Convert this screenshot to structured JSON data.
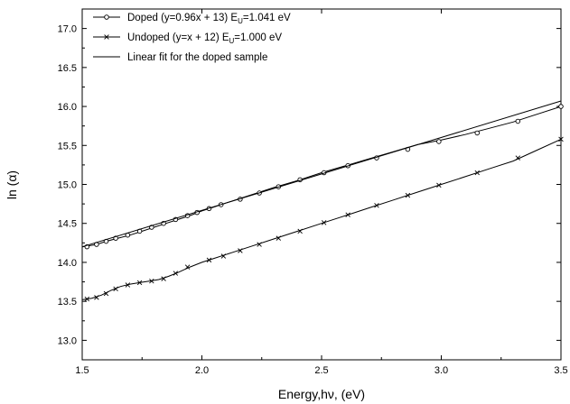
{
  "chart_data": {
    "type": "line",
    "xlabel": "Energy,hν, (eV)",
    "ylabel": "ln (α)",
    "xlim": [
      1.5,
      3.5
    ],
    "ylim": [
      12.75,
      17.25
    ],
    "xticks": [
      "1.5",
      "2.0",
      "2.5",
      "3.0",
      "3.5"
    ],
    "yticks": [
      "13.0",
      "13.5",
      "14.0",
      "14.5",
      "15.0",
      "15.5",
      "16.0",
      "16.5",
      "17.0"
    ],
    "xtick_values": [
      1.5,
      2.0,
      2.5,
      3.0,
      3.5
    ],
    "ytick_values": [
      13.0,
      13.5,
      14.0,
      14.5,
      15.0,
      15.5,
      16.0,
      16.5,
      17.0
    ],
    "legend_position": "top-left",
    "grid": false,
    "series": [
      {
        "name": "Doped (y=0.96x + 13) E",
        "name_sub": "U",
        "name_tail": "=1.041 eV",
        "marker": "circle",
        "x": [
          1.5,
          1.56,
          1.6,
          1.65,
          1.7,
          1.75,
          1.8,
          1.85,
          1.9,
          1.95,
          2.0,
          2.05,
          2.1,
          2.15,
          2.2,
          2.3,
          2.4,
          2.5,
          2.6,
          2.7,
          2.8,
          2.9,
          3.0,
          3.1,
          3.2,
          3.3,
          3.4,
          3.5
        ],
        "y": [
          14.2,
          14.23,
          14.27,
          14.31,
          14.35,
          14.4,
          14.45,
          14.5,
          14.55,
          14.6,
          14.66,
          14.71,
          14.76,
          14.81,
          14.86,
          14.96,
          15.05,
          15.15,
          15.24,
          15.33,
          15.42,
          15.51,
          15.57,
          15.64,
          15.72,
          15.8,
          15.9,
          16.0
        ],
        "marker_x": [
          1.52,
          1.56,
          1.6,
          1.64,
          1.69,
          1.74,
          1.79,
          1.84,
          1.89,
          1.94,
          1.98,
          2.03,
          2.08,
          2.16,
          2.24,
          2.32,
          2.41,
          2.51,
          2.61,
          2.73,
          2.86,
          2.99,
          3.15,
          3.32,
          3.5
        ],
        "marker_y": [
          14.2,
          14.23,
          14.27,
          14.31,
          14.35,
          14.4,
          14.45,
          14.5,
          14.55,
          14.6,
          14.64,
          14.69,
          14.74,
          14.81,
          14.89,
          14.97,
          15.06,
          15.15,
          15.24,
          15.34,
          15.45,
          15.55,
          15.66,
          15.81,
          16.0
        ]
      },
      {
        "name": "Undoped (y=x + 12) E",
        "name_sub": "U",
        "name_tail": "=1.000 eV",
        "marker": "x",
        "x": [
          1.5,
          1.54,
          1.58,
          1.62,
          1.66,
          1.7,
          1.74,
          1.78,
          1.82,
          1.86,
          1.9,
          1.95,
          2.0,
          2.05,
          2.1,
          2.2,
          2.3,
          2.4,
          2.5,
          2.6,
          2.7,
          2.8,
          2.9,
          3.0,
          3.1,
          3.2,
          3.3,
          3.4,
          3.5
        ],
        "y": [
          13.52,
          13.54,
          13.58,
          13.64,
          13.69,
          13.72,
          13.74,
          13.76,
          13.78,
          13.82,
          13.87,
          13.94,
          14.0,
          14.05,
          14.1,
          14.2,
          14.3,
          14.4,
          14.5,
          14.6,
          14.7,
          14.8,
          14.9,
          15.0,
          15.1,
          15.2,
          15.3,
          15.44,
          15.58
        ],
        "marker_x": [
          1.52,
          1.56,
          1.6,
          1.64,
          1.69,
          1.74,
          1.79,
          1.84,
          1.89,
          1.94,
          2.03,
          2.09,
          2.16,
          2.24,
          2.32,
          2.41,
          2.51,
          2.61,
          2.73,
          2.86,
          2.99,
          3.15,
          3.32,
          3.5
        ],
        "marker_y": [
          13.53,
          13.55,
          13.6,
          13.66,
          13.71,
          13.74,
          13.76,
          13.79,
          13.86,
          13.94,
          14.03,
          14.08,
          14.15,
          14.23,
          14.31,
          14.4,
          14.51,
          14.61,
          14.73,
          14.86,
          14.99,
          15.15,
          15.34,
          15.58
        ]
      },
      {
        "name": "Linear fit for the doped sample",
        "marker": "none",
        "x": [
          1.5,
          3.5
        ],
        "y": [
          14.2,
          16.07
        ]
      }
    ]
  }
}
